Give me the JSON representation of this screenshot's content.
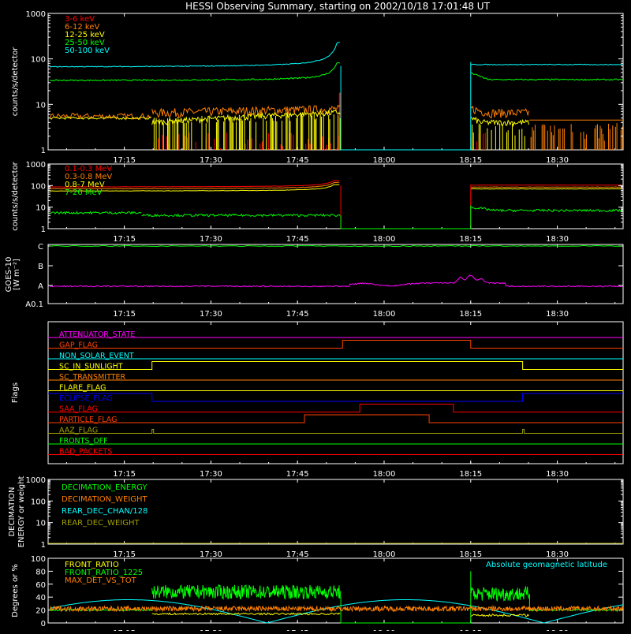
{
  "title": "HESSI Observing Summary, starting on 2002/10/18 17:01:48 UT",
  "time_ticks": [
    "17:15",
    "17:30",
    "17:45",
    "18:00",
    "18:15",
    "18:30"
  ],
  "colors": {
    "frame": "#ffffff",
    "red": "#ff0000",
    "orange": "#ff8000",
    "yellow": "#ffff00",
    "green": "#00ff00",
    "cyan": "#00ffff",
    "magenta": "#ff00ff",
    "blue": "#0000ff",
    "olive": "#a0a000",
    "lightyellow": "#ffffa0"
  },
  "chart_data": [
    {
      "id": "p1",
      "type": "line",
      "ylabel": "counts/s/detector",
      "yscale": "log",
      "ylim": [
        1,
        1000
      ],
      "yticks": [
        "1",
        "10",
        "100",
        "1000"
      ],
      "series": [
        {
          "name": "3-6 keV",
          "color": "#ff0000"
        },
        {
          "name": "6-12 keV",
          "color": "#ff8000"
        },
        {
          "name": "12-25 keV",
          "color": "#ffff00"
        },
        {
          "name": "25-50 keV",
          "color": "#00ff00"
        },
        {
          "name": "50-100 keV",
          "color": "#00ffff"
        }
      ]
    },
    {
      "id": "p2",
      "type": "line",
      "ylabel": "counts/s/detector",
      "yscale": "log",
      "ylim": [
        1,
        1000
      ],
      "yticks": [
        "1",
        "10",
        "100",
        "1000"
      ],
      "series": [
        {
          "name": "0.1-0.3 MeV",
          "color": "#ff0000"
        },
        {
          "name": "0.3-0.8 MeV",
          "color": "#ff8000"
        },
        {
          "name": "0.8-7 MeV",
          "color": "#ffff00"
        },
        {
          "name": "7-20 MeV",
          "color": "#00ff00"
        }
      ]
    },
    {
      "id": "p3",
      "type": "line",
      "ylabel": "GOES-10 [W m⁻²]",
      "yticks": [
        "A0.1",
        "A",
        "B",
        "C"
      ]
    },
    {
      "id": "p4",
      "type": "line",
      "ylabel": "Flags",
      "flags": [
        {
          "name": "ATTENUATOR_STATE",
          "color": "#ff00ff"
        },
        {
          "name": "GAP_FLAG",
          "color": "#ff4000",
          "on": [
            [
              17.88,
              18.25
            ]
          ]
        },
        {
          "name": "NON_SOLAR_EVENT",
          "color": "#00ffff"
        },
        {
          "name": "SC_IN_SUNLIGHT",
          "color": "#ffff00",
          "on": [
            [
              17.33,
              18.4
            ]
          ]
        },
        {
          "name": "SC_TRANSMITTER",
          "color": "#ff8000"
        },
        {
          "name": "FLARE_FLAG",
          "color": "#ffff00"
        },
        {
          "name": "ECLIPSE_FLAG",
          "color": "#0000ff",
          "off": [
            [
              17.33,
              18.4
            ]
          ]
        },
        {
          "name": "SAA_FLAG",
          "color": "#ff0000",
          "on": [
            [
              17.93,
              18.2
            ]
          ]
        },
        {
          "name": "PARTICLE_FLAG",
          "color": "#ff4000",
          "on": [
            [
              17.77,
              18.13
            ]
          ]
        },
        {
          "name": "AAZ_FLAG",
          "color": "#a0a000",
          "pulses": [
            17.33,
            18.4
          ]
        },
        {
          "name": "FRONTS_OFF",
          "color": "#00ff00"
        },
        {
          "name": "BAD_PACKETS",
          "color": "#ff0000"
        }
      ]
    },
    {
      "id": "p5",
      "type": "line",
      "ylabel": "DECIMATION ENERGY or weight",
      "yscale": "log",
      "ylim": [
        1,
        1000
      ],
      "yticks": [
        "1",
        "10",
        "100",
        "1000"
      ],
      "series": [
        {
          "name": "DECIMATION_ENERGY",
          "color": "#00ff00"
        },
        {
          "name": "DECIMATION_WEIGHT",
          "color": "#ff8000"
        },
        {
          "name": "REAR_DEC_CHAN/128",
          "color": "#00ffff"
        },
        {
          "name": "REAR_DEC_WEIGHT",
          "color": "#a0a000"
        }
      ]
    },
    {
      "id": "p6",
      "type": "line",
      "ylabel": "Degrees or %",
      "ylim": [
        0,
        100
      ],
      "yticks": [
        "0",
        "20",
        "40",
        "60",
        "80",
        "100"
      ],
      "series": [
        {
          "name": "FRONT_RATIO",
          "color": "#ffff00"
        },
        {
          "name": "FRONT_RATIO_1225",
          "color": "#00ff00"
        },
        {
          "name": "MAX_DET_VS_TOT",
          "color": "#ff8000"
        },
        {
          "name": "Absolute geomagnetic latitude",
          "color": "#00ffff"
        }
      ]
    }
  ]
}
